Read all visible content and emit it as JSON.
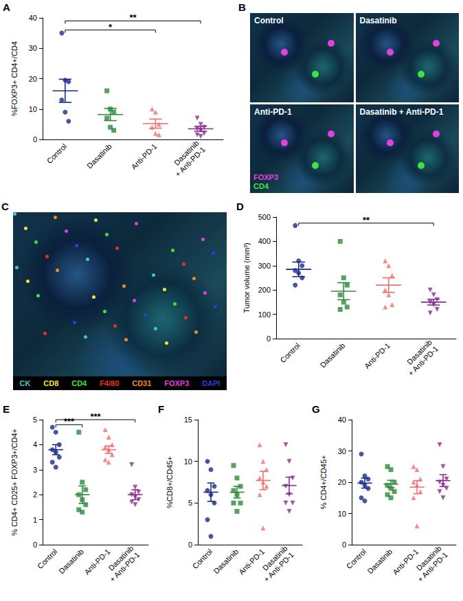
{
  "chart_data": [
    {
      "panel": "A",
      "type": "scatter",
      "y_label": "%FOXP3+ CD4+/CD4",
      "categories": [
        "Control",
        "Dasatinib",
        "Anti-PD-1",
        "Dasatinib\n+ Anti-PD-1"
      ],
      "ylim": [
        0,
        40
      ],
      "yticks": [
        0,
        10,
        20,
        30,
        40
      ],
      "grid": false,
      "groups": [
        {
          "name": "Control",
          "color": "#1a2a8c",
          "marker": "circle",
          "values": [
            35,
            19.5,
            19,
            13,
            9,
            6
          ],
          "mean": 16,
          "sem": 3.8
        },
        {
          "name": "Dasatinib",
          "color": "#2e8b3a",
          "marker": "square",
          "values": [
            16,
            10,
            9,
            7,
            4,
            3
          ],
          "mean": 8.2,
          "sem": 2
        },
        {
          "name": "Anti-PD-1",
          "color": "#f26d6d",
          "marker": "triangle",
          "values": [
            10,
            9,
            5,
            4,
            2,
            1.5
          ],
          "mean": 5.2,
          "sem": 1.5
        },
        {
          "name": "Dasatinib\n+ Anti-PD-1",
          "color": "#8b2b8f",
          "marker": "triangle-down",
          "values": [
            7,
            5,
            4,
            3.5,
            3,
            2,
            1.5,
            1
          ],
          "mean": 3.5,
          "sem": 0.8
        }
      ],
      "significance": [
        {
          "from": "Control",
          "to": "Anti-PD-1",
          "label": "*",
          "y": 36
        },
        {
          "from": "Control",
          "to": "Dasatinib\n+ Anti-PD-1",
          "label": "**",
          "y": 39
        }
      ]
    },
    {
      "panel": "D",
      "type": "scatter",
      "y_label": "Tumor volume (mm³)",
      "categories": [
        "Control",
        "Dasatinib",
        "Anti-PD-1",
        "Dasatinib\n+ Anti-PD-1"
      ],
      "ylim": [
        0,
        500
      ],
      "yticks": [
        0,
        100,
        200,
        300,
        400,
        500
      ],
      "grid": false,
      "groups": [
        {
          "name": "Control",
          "color": "#1a2a8c",
          "marker": "circle",
          "values": [
            465,
            320,
            300,
            280,
            270,
            250,
            220
          ],
          "mean": 285,
          "sem": 30
        },
        {
          "name": "Dasatinib",
          "color": "#2e8b3a",
          "marker": "square",
          "values": [
            400,
            250,
            220,
            180,
            150,
            130,
            120
          ],
          "mean": 195,
          "sem": 35
        },
        {
          "name": "Anti-PD-1",
          "color": "#f26d6d",
          "marker": "triangle",
          "values": [
            320,
            300,
            260,
            200,
            180,
            140,
            130
          ],
          "mean": 220,
          "sem": 30
        },
        {
          "name": "Dasatinib\n+ Anti-PD-1",
          "color": "#8b2b8f",
          "marker": "triangle-down",
          "values": [
            200,
            180,
            160,
            150,
            140,
            120,
            105
          ],
          "mean": 150,
          "sem": 12
        }
      ],
      "significance": [
        {
          "from": "Control",
          "to": "Dasatinib\n+ Anti-PD-1",
          "label": "**",
          "y": 475
        }
      ]
    },
    {
      "panel": "E",
      "type": "scatter",
      "y_label": "% CD4+ CD25+ FOXP3+/CD4+",
      "categories": [
        "Control",
        "Dasatinib",
        "Anti-PD-1",
        "Dasatinib\n+ Anti-PD-1"
      ],
      "ylim": [
        0,
        5
      ],
      "yticks": [
        0,
        1,
        2,
        3,
        4,
        5
      ],
      "grid": false,
      "groups": [
        {
          "name": "Control",
          "color": "#1a2a8c",
          "marker": "circle",
          "values": [
            4.7,
            4.5,
            4.0,
            3.8,
            3.7,
            3.5,
            3.3,
            3.1
          ],
          "mean": 3.8,
          "sem": 0.2
        },
        {
          "name": "Dasatinib",
          "color": "#2e8b3a",
          "marker": "square",
          "values": [
            4.5,
            2.5,
            2.2,
            2.0,
            1.8,
            1.6,
            1.4,
            1.3
          ],
          "mean": 2.0,
          "sem": 0.35
        },
        {
          "name": "Anti-PD-1",
          "color": "#f26d6d",
          "marker": "triangle",
          "values": [
            4.6,
            4.3,
            4.0,
            3.9,
            3.8,
            3.6,
            3.4,
            3.3
          ],
          "mean": 3.8,
          "sem": 0.15
        },
        {
          "name": "Dasatinib\n+ Anti-PD-1",
          "color": "#8b2b8f",
          "marker": "triangle-down",
          "values": [
            3.2,
            2.3,
            2.1,
            2.0,
            1.9,
            1.8,
            1.7,
            1.6
          ],
          "mean": 2.0,
          "sem": 0.2
        }
      ],
      "significance": [
        {
          "from": "Control",
          "to": "Dasatinib",
          "label": "***",
          "y": 4.8
        },
        {
          "from": "Control",
          "to": "Dasatinib\n+ Anti-PD-1",
          "label": "***",
          "y": 5
        }
      ]
    },
    {
      "panel": "F",
      "type": "scatter",
      "y_label": "%CD8+/CD45+",
      "categories": [
        "Control",
        "Dasatinib",
        "Anti-PD-1",
        "Dasatinib\n+ Anti-PD-1"
      ],
      "ylim": [
        0,
        15
      ],
      "yticks": [
        0,
        5,
        10,
        15
      ],
      "grid": false,
      "groups": [
        {
          "name": "Control",
          "color": "#1a2a8c",
          "marker": "circle",
          "values": [
            10,
            9,
            7,
            6.5,
            6,
            5,
            3,
            1
          ],
          "mean": 6.3,
          "sem": 1.1
        },
        {
          "name": "Dasatinib",
          "color": "#2e8b3a",
          "marker": "square",
          "values": [
            9.5,
            8,
            7,
            6.5,
            6,
            5,
            5,
            4
          ],
          "mean": 6.3,
          "sem": 0.7
        },
        {
          "name": "Anti-PD-1",
          "color": "#f26d6d",
          "marker": "triangle",
          "values": [
            12,
            10,
            9,
            8,
            7.5,
            7,
            6,
            2
          ],
          "mean": 7.7,
          "sem": 1.1
        },
        {
          "name": "Dasatinib\n+ Anti-PD-1",
          "color": "#8b2b8f",
          "marker": "triangle-down",
          "values": [
            12,
            10,
            8,
            7,
            6,
            5,
            5,
            4
          ],
          "mean": 7.1,
          "sem": 1.0
        }
      ],
      "significance": []
    },
    {
      "panel": "G",
      "type": "scatter",
      "y_label": "% CD4+/CD45+",
      "categories": [
        "Control",
        "Dasatinib",
        "Anti-PD-1",
        "Dasatinib\n+ Anti-PD-1"
      ],
      "ylim": [
        0,
        40
      ],
      "yticks": [
        0,
        10,
        20,
        30,
        40
      ],
      "grid": false,
      "groups": [
        {
          "name": "Control",
          "color": "#1a2a8c",
          "marker": "circle",
          "values": [
            29,
            22,
            21,
            20,
            19,
            18,
            15,
            14
          ],
          "mean": 19.7,
          "sem": 1.6
        },
        {
          "name": "Dasatinib",
          "color": "#2e8b3a",
          "marker": "square",
          "values": [
            25,
            24,
            20,
            19,
            18,
            17,
            16,
            15
          ],
          "mean": 19.4,
          "sem": 1.2
        },
        {
          "name": "Anti-PD-1",
          "color": "#f26d6d",
          "marker": "triangle",
          "values": [
            25,
            24,
            21,
            20,
            19,
            17,
            15,
            6
          ],
          "mean": 18.4,
          "sem": 2.1
        },
        {
          "name": "Dasatinib\n+ Anti-PD-1",
          "color": "#8b2b8f",
          "marker": "triangle-down",
          "values": [
            32,
            25,
            21,
            20,
            19,
            18,
            17,
            15
          ],
          "mean": 20.5,
          "sem": 1.9
        }
      ],
      "significance": []
    }
  ],
  "images": [
    {
      "panel": "B",
      "tiles": [
        "Control",
        "Dasatinib",
        "Anti-PD-1",
        "Dasatinib + Anti-PD-1"
      ],
      "legend": [
        {
          "label": "FOXP3",
          "color": "#e63fe0"
        },
        {
          "label": "CD4",
          "color": "#3fe33f"
        }
      ]
    },
    {
      "panel": "C",
      "legend": [
        {
          "label": "CK",
          "color": "#3fc8c8"
        },
        {
          "label": "CD8",
          "color": "#f5e33a"
        },
        {
          "label": "CD4",
          "color": "#3de33d"
        },
        {
          "label": "F4/80",
          "color": "#e8312b"
        },
        {
          "label": "CD31",
          "color": "#f08a24"
        },
        {
          "label": "FOXP3",
          "color": "#e23de2"
        },
        {
          "label": "DAPI",
          "color": "#2a3fd6"
        }
      ]
    }
  ]
}
